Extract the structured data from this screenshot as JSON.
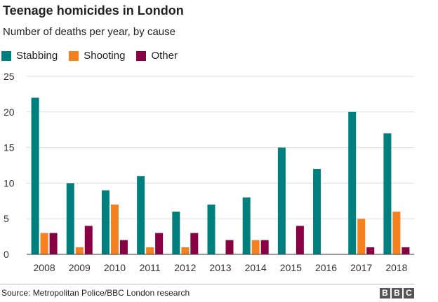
{
  "title": "Teenage homicides in London",
  "subtitle": "Number of deaths per year, by cause",
  "source": "Source: Metropolitan Police/BBC London research",
  "logo": [
    "B",
    "B",
    "C"
  ],
  "chart_data": {
    "type": "bar",
    "title": "Teenage homicides in London",
    "subtitle": "Number of deaths per year, by cause",
    "categories": [
      "2008",
      "2009",
      "2010",
      "2011",
      "2012",
      "2013",
      "2014",
      "2015",
      "2016",
      "2017",
      "2018"
    ],
    "series": [
      {
        "name": "Stabbing",
        "color": "#007f7f",
        "values": [
          22,
          10,
          9,
          11,
          6,
          7,
          8,
          15,
          12,
          20,
          17
        ]
      },
      {
        "name": "Shooting",
        "color": "#f5821f",
        "values": [
          3,
          1,
          7,
          1,
          1,
          0,
          2,
          0,
          0,
          5,
          6
        ]
      },
      {
        "name": "Other",
        "color": "#8a0044",
        "values": [
          3,
          4,
          2,
          3,
          3,
          2,
          2,
          4,
          0,
          1,
          1
        ]
      }
    ],
    "ylim": [
      0,
      25
    ],
    "yticks": [
      0,
      5,
      10,
      15,
      20,
      25
    ],
    "grid": true,
    "legend": "top-left"
  }
}
